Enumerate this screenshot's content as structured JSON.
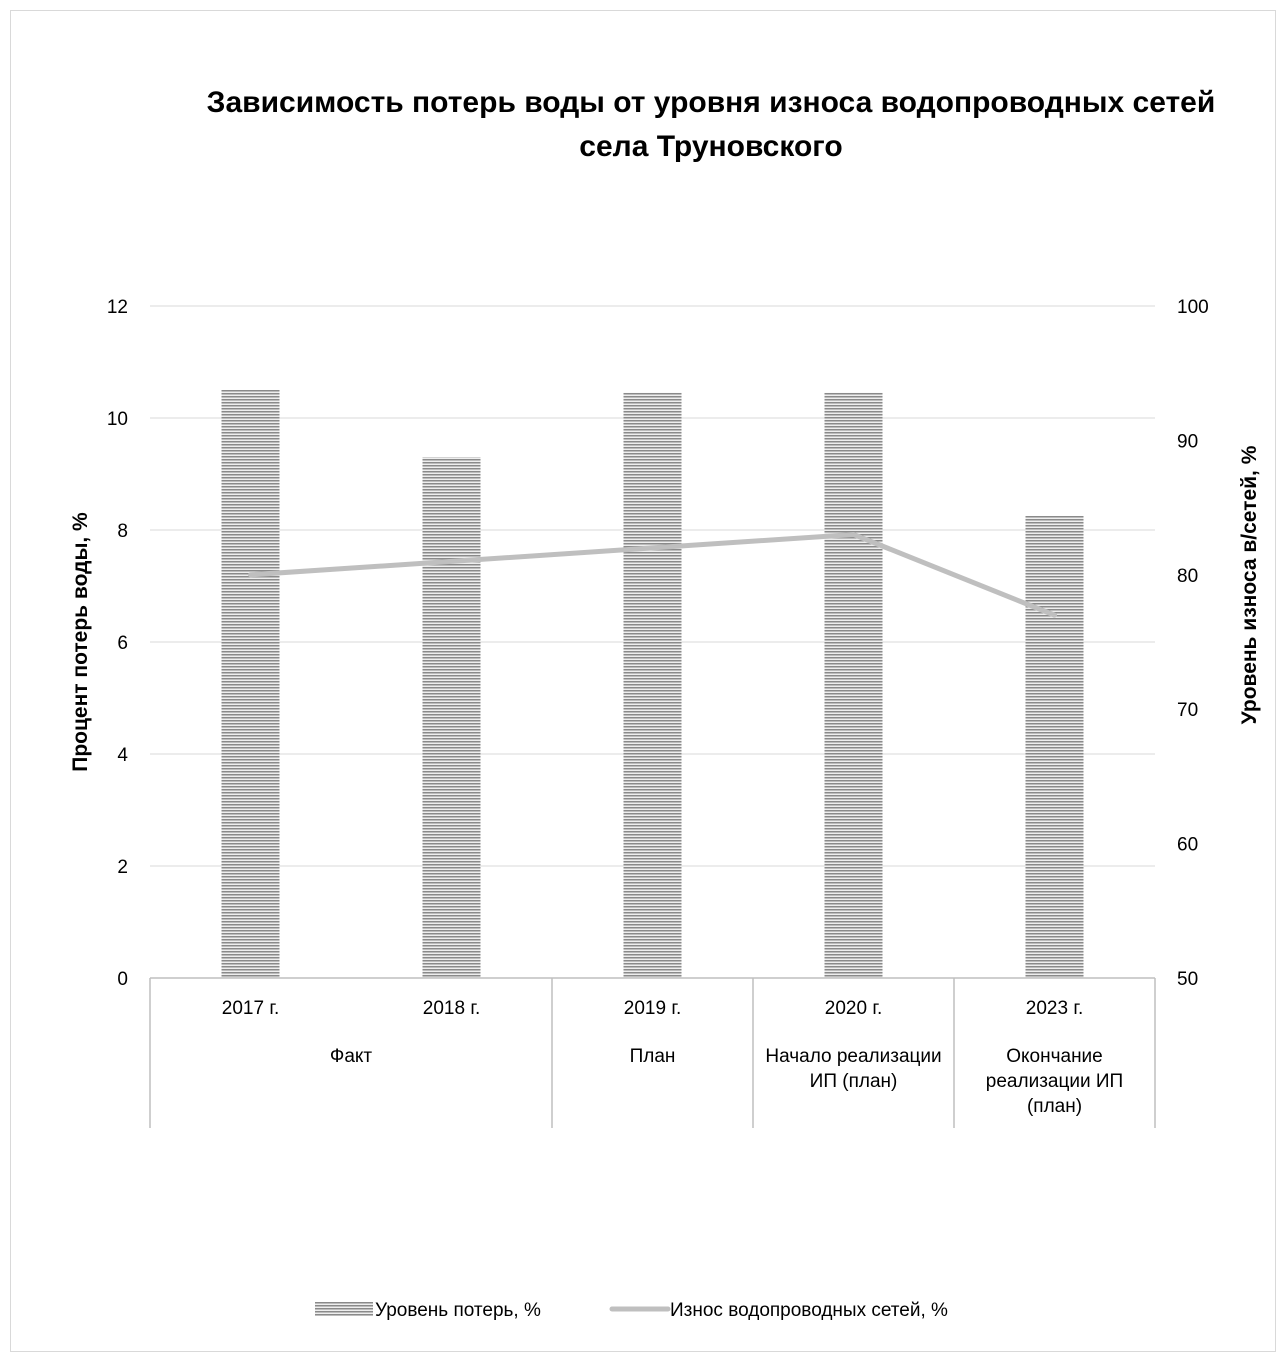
{
  "chart_data": {
    "type": "bar",
    "title": "Зависимость потерь воды от уровня износа водопроводных сетей села Труновского",
    "categories": [
      "2017 г.",
      "2018 г.",
      "2019 г.",
      "2020 г.",
      "2023 г."
    ],
    "category_groups": [
      {
        "label": "Факт",
        "span": 2
      },
      {
        "label": "План",
        "span": 1
      },
      {
        "label": "Начало реализации ИП (план)",
        "span": 1
      },
      {
        "label": "Окончание реализации ИП (план)",
        "span": 1
      }
    ],
    "series": [
      {
        "name": "Уровень потерь, %",
        "kind": "bar",
        "axis": "left",
        "color": "#9e9e9e",
        "values": [
          10.5,
          9.3,
          10.45,
          10.45,
          8.25
        ]
      },
      {
        "name": "Износ водопроводных сетей, %",
        "kind": "line",
        "axis": "right",
        "color": "#bfbfbf",
        "values": [
          80,
          81,
          82,
          83,
          77
        ]
      }
    ],
    "ylabel": "Процент потерь воды, %",
    "y2label": "Уровень износа в/сетей, %",
    "ylim": [
      0,
      12
    ],
    "y2lim": [
      50,
      100
    ],
    "yticks": [
      "0",
      "2",
      "4",
      "6",
      "8",
      "10",
      "12"
    ],
    "y2ticks": [
      "50",
      "60",
      "70",
      "80",
      "90",
      "100"
    ],
    "grid": true,
    "legend_position": "bottom"
  }
}
